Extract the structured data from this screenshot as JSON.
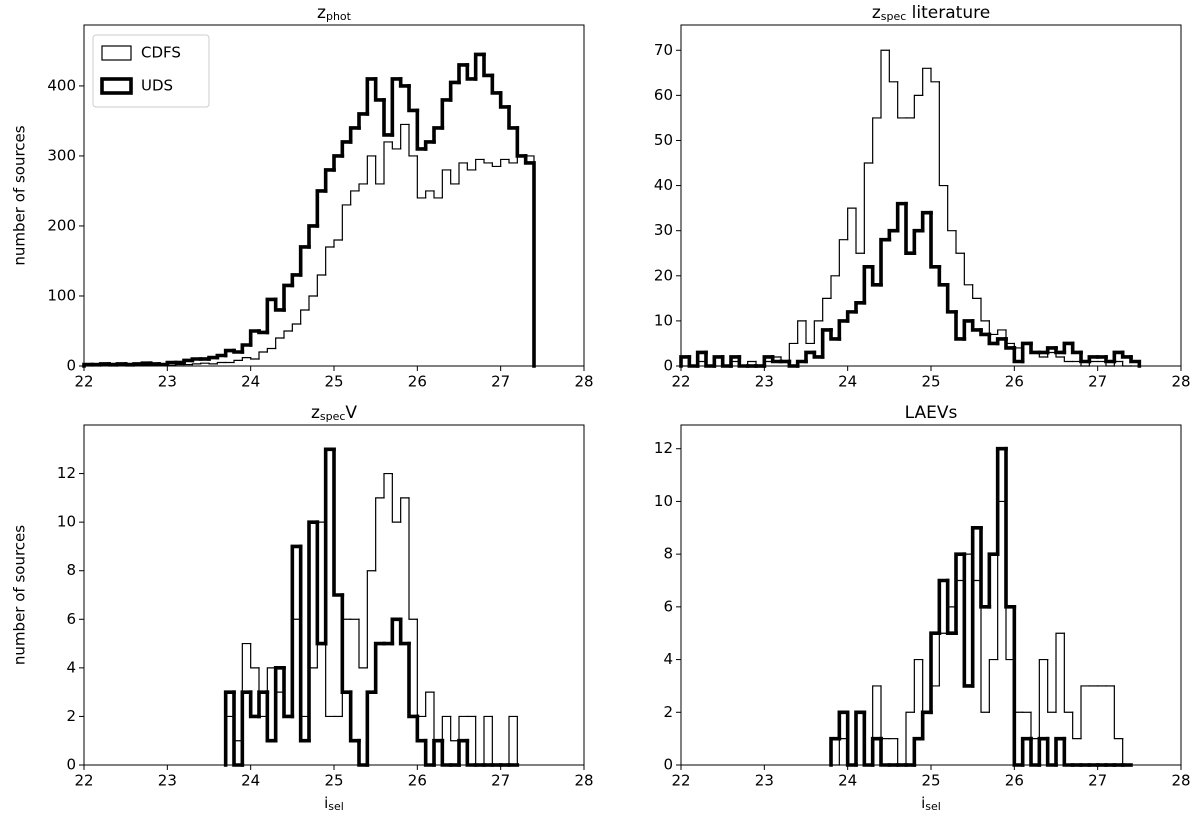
{
  "chart_data": [
    {
      "type": "histogram",
      "title": [
        {
          "text": "z"
        },
        {
          "text": "phot",
          "sub": true
        }
      ],
      "ylabel": "number of sources",
      "legend": "upper left",
      "xlim": [
        22,
        28
      ],
      "xticks": [
        22,
        23,
        24,
        25,
        26,
        27,
        28
      ],
      "ylim": [
        0,
        487
      ],
      "yticks": [
        0,
        100,
        200,
        300,
        400
      ],
      "bins": [
        22.0,
        22.1,
        22.2,
        22.3,
        22.4,
        22.5,
        22.6,
        22.7,
        22.8,
        22.9,
        23.0,
        23.1,
        23.2,
        23.3,
        23.4,
        23.5,
        23.6,
        23.7,
        23.8,
        23.9,
        24.0,
        24.1,
        24.2,
        24.3,
        24.4,
        24.5,
        24.6,
        24.7,
        24.8,
        24.9,
        25.0,
        25.1,
        25.2,
        25.3,
        25.4,
        25.5,
        25.6,
        25.7,
        25.8,
        25.9,
        26.0,
        26.1,
        26.2,
        26.3,
        26.4,
        26.5,
        26.6,
        26.7,
        26.8,
        26.9,
        27.0,
        27.1,
        27.2,
        27.3,
        27.4
      ],
      "series": [
        {
          "name": "CDFS",
          "color": "#000000",
          "linewidth": 1.2,
          "values": [
            0,
            0,
            1,
            0,
            1,
            0,
            1,
            1,
            2,
            1,
            1,
            2,
            2,
            3,
            4,
            3,
            5,
            5,
            8,
            12,
            10,
            20,
            25,
            40,
            50,
            60,
            80,
            100,
            130,
            170,
            180,
            230,
            250,
            260,
            300,
            260,
            320,
            310,
            345,
            300,
            240,
            250,
            240,
            280,
            260,
            290,
            280,
            295,
            290,
            285,
            295,
            290,
            300,
            300
          ]
        },
        {
          "name": "UDS",
          "color": "#000000",
          "linewidth": 3.6,
          "values": [
            2,
            2,
            3,
            2,
            3,
            2,
            3,
            4,
            3,
            2,
            5,
            5,
            8,
            10,
            10,
            12,
            15,
            22,
            20,
            30,
            50,
            48,
            95,
            80,
            115,
            130,
            170,
            200,
            250,
            280,
            300,
            320,
            340,
            360,
            410,
            380,
            330,
            410,
            400,
            365,
            310,
            320,
            340,
            380,
            405,
            430,
            410,
            445,
            415,
            390,
            370,
            340,
            300,
            290
          ]
        }
      ]
    },
    {
      "type": "histogram",
      "title": [
        {
          "text": "z"
        },
        {
          "text": "spec",
          "sub": true
        },
        {
          "text": " literature"
        }
      ],
      "xlim": [
        22,
        28
      ],
      "xticks": [
        22,
        23,
        24,
        25,
        26,
        27,
        28
      ],
      "ylim": [
        0,
        75.6
      ],
      "yticks": [
        0,
        10,
        20,
        30,
        40,
        50,
        60,
        70
      ],
      "bins": [
        22.0,
        22.1,
        22.2,
        22.3,
        22.4,
        22.5,
        22.6,
        22.7,
        22.8,
        22.9,
        23.0,
        23.1,
        23.2,
        23.3,
        23.4,
        23.5,
        23.6,
        23.7,
        23.8,
        23.9,
        24.0,
        24.1,
        24.2,
        24.3,
        24.4,
        24.5,
        24.6,
        24.7,
        24.8,
        24.9,
        25.0,
        25.1,
        25.2,
        25.3,
        25.4,
        25.5,
        25.6,
        25.7,
        25.8,
        25.9,
        26.0,
        26.1,
        26.2,
        26.3,
        26.4,
        26.5,
        26.6,
        26.7,
        26.8,
        26.9,
        27.0,
        27.1,
        27.2,
        27.3,
        27.4,
        27.5
      ],
      "series": [
        {
          "color": "#000000",
          "linewidth": 1.2,
          "values": [
            0,
            0,
            1,
            0,
            0,
            0,
            1,
            0,
            1,
            0,
            1,
            2,
            1,
            5,
            10,
            5,
            10,
            15,
            20,
            28,
            35,
            25,
            45,
            55,
            70,
            63,
            55,
            55,
            60,
            66,
            63,
            40,
            30,
            25,
            18,
            15,
            10,
            7,
            8,
            5,
            4,
            5,
            3,
            2,
            3,
            2,
            1,
            1,
            0,
            1,
            1,
            0,
            1,
            0,
            0
          ]
        },
        {
          "color": "#000000",
          "linewidth": 3.6,
          "values": [
            2,
            0,
            3,
            0,
            2,
            0,
            2,
            0,
            0,
            0,
            2,
            1,
            1,
            0,
            1,
            3,
            2,
            8,
            6,
            10,
            12,
            14,
            22,
            18,
            28,
            30,
            36,
            25,
            30,
            34,
            22,
            18,
            12,
            6,
            10,
            8,
            7,
            5,
            6,
            4,
            1,
            5,
            3,
            3,
            4,
            3,
            5,
            3,
            1,
            2,
            2,
            1,
            3,
            2,
            1
          ]
        }
      ]
    },
    {
      "type": "histogram",
      "title": [
        {
          "text": "z"
        },
        {
          "text": "spec",
          "sub": true
        },
        {
          "text": "V"
        }
      ],
      "ylabel": "number of sources",
      "xlabel": [
        {
          "text": "i"
        },
        {
          "text": "sel",
          "sub": true
        }
      ],
      "xlim": [
        22,
        28
      ],
      "xticks": [
        22,
        23,
        24,
        25,
        26,
        27,
        28
      ],
      "ylim": [
        0,
        14
      ],
      "yticks": [
        0,
        2,
        4,
        6,
        8,
        10,
        12
      ],
      "bins": [
        23.7,
        23.8,
        23.9,
        24.0,
        24.1,
        24.2,
        24.3,
        24.4,
        24.5,
        24.6,
        24.7,
        24.8,
        24.9,
        25.0,
        25.1,
        25.2,
        25.3,
        25.4,
        25.5,
        25.6,
        25.7,
        25.8,
        25.9,
        26.0,
        26.1,
        26.2,
        26.3,
        26.4,
        26.5,
        26.6,
        26.7,
        26.8,
        26.9,
        27.0,
        27.1,
        27.2
      ],
      "series": [
        {
          "color": "#000000",
          "linewidth": 1.2,
          "values": [
            2,
            1,
            5,
            4,
            2,
            4,
            3,
            2,
            6,
            2,
            4,
            10,
            2,
            2,
            6,
            6,
            4,
            8,
            11,
            12,
            10,
            11,
            6,
            2,
            3,
            1,
            2,
            1,
            2,
            2,
            0,
            2,
            0,
            0,
            2
          ]
        },
        {
          "color": "#000000",
          "linewidth": 3.6,
          "values": [
            3,
            0,
            3,
            2,
            3,
            1,
            4,
            2,
            9,
            1,
            10,
            5,
            13,
            7,
            3,
            1,
            0,
            3,
            5,
            5,
            6,
            5,
            2,
            1,
            0,
            1,
            0,
            0,
            1,
            0,
            0,
            0,
            0,
            0,
            0
          ]
        }
      ]
    },
    {
      "type": "histogram",
      "title": [
        {
          "text": "LAEVs"
        }
      ],
      "xlabel": [
        {
          "text": "i"
        },
        {
          "text": "sel",
          "sub": true
        }
      ],
      "xlim": [
        22,
        28
      ],
      "xticks": [
        22,
        23,
        24,
        25,
        26,
        27,
        28
      ],
      "ylim": [
        0,
        12.9
      ],
      "yticks": [
        0,
        2,
        4,
        6,
        8,
        10,
        12
      ],
      "bins": [
        23.8,
        23.9,
        24.0,
        24.1,
        24.2,
        24.3,
        24.4,
        24.5,
        24.6,
        24.7,
        24.8,
        24.9,
        25.0,
        25.1,
        25.2,
        25.3,
        25.4,
        25.5,
        25.6,
        25.7,
        25.8,
        25.9,
        26.0,
        26.1,
        26.2,
        26.3,
        26.4,
        26.5,
        26.6,
        26.7,
        26.8,
        26.9,
        27.0,
        27.1,
        27.2,
        27.3,
        27.4
      ],
      "series": [
        {
          "color": "#000000",
          "linewidth": 1.2,
          "values": [
            0,
            1,
            0,
            2,
            0,
            3,
            1,
            1,
            0,
            2,
            4,
            2,
            3,
            5,
            6,
            7,
            8,
            7,
            2,
            4,
            10,
            4,
            2,
            2,
            1,
            4,
            2,
            5,
            2,
            1,
            3,
            3,
            3,
            3,
            1,
            0
          ]
        },
        {
          "color": "#000000",
          "linewidth": 3.6,
          "values": [
            1,
            2,
            0,
            2,
            0,
            1,
            0,
            0,
            0,
            0,
            1,
            2,
            5,
            7,
            5,
            8,
            3,
            9,
            6,
            8,
            12,
            6,
            0,
            1,
            0,
            1,
            0,
            1,
            0,
            0,
            0,
            0,
            0,
            0,
            0,
            0
          ]
        }
      ]
    }
  ]
}
